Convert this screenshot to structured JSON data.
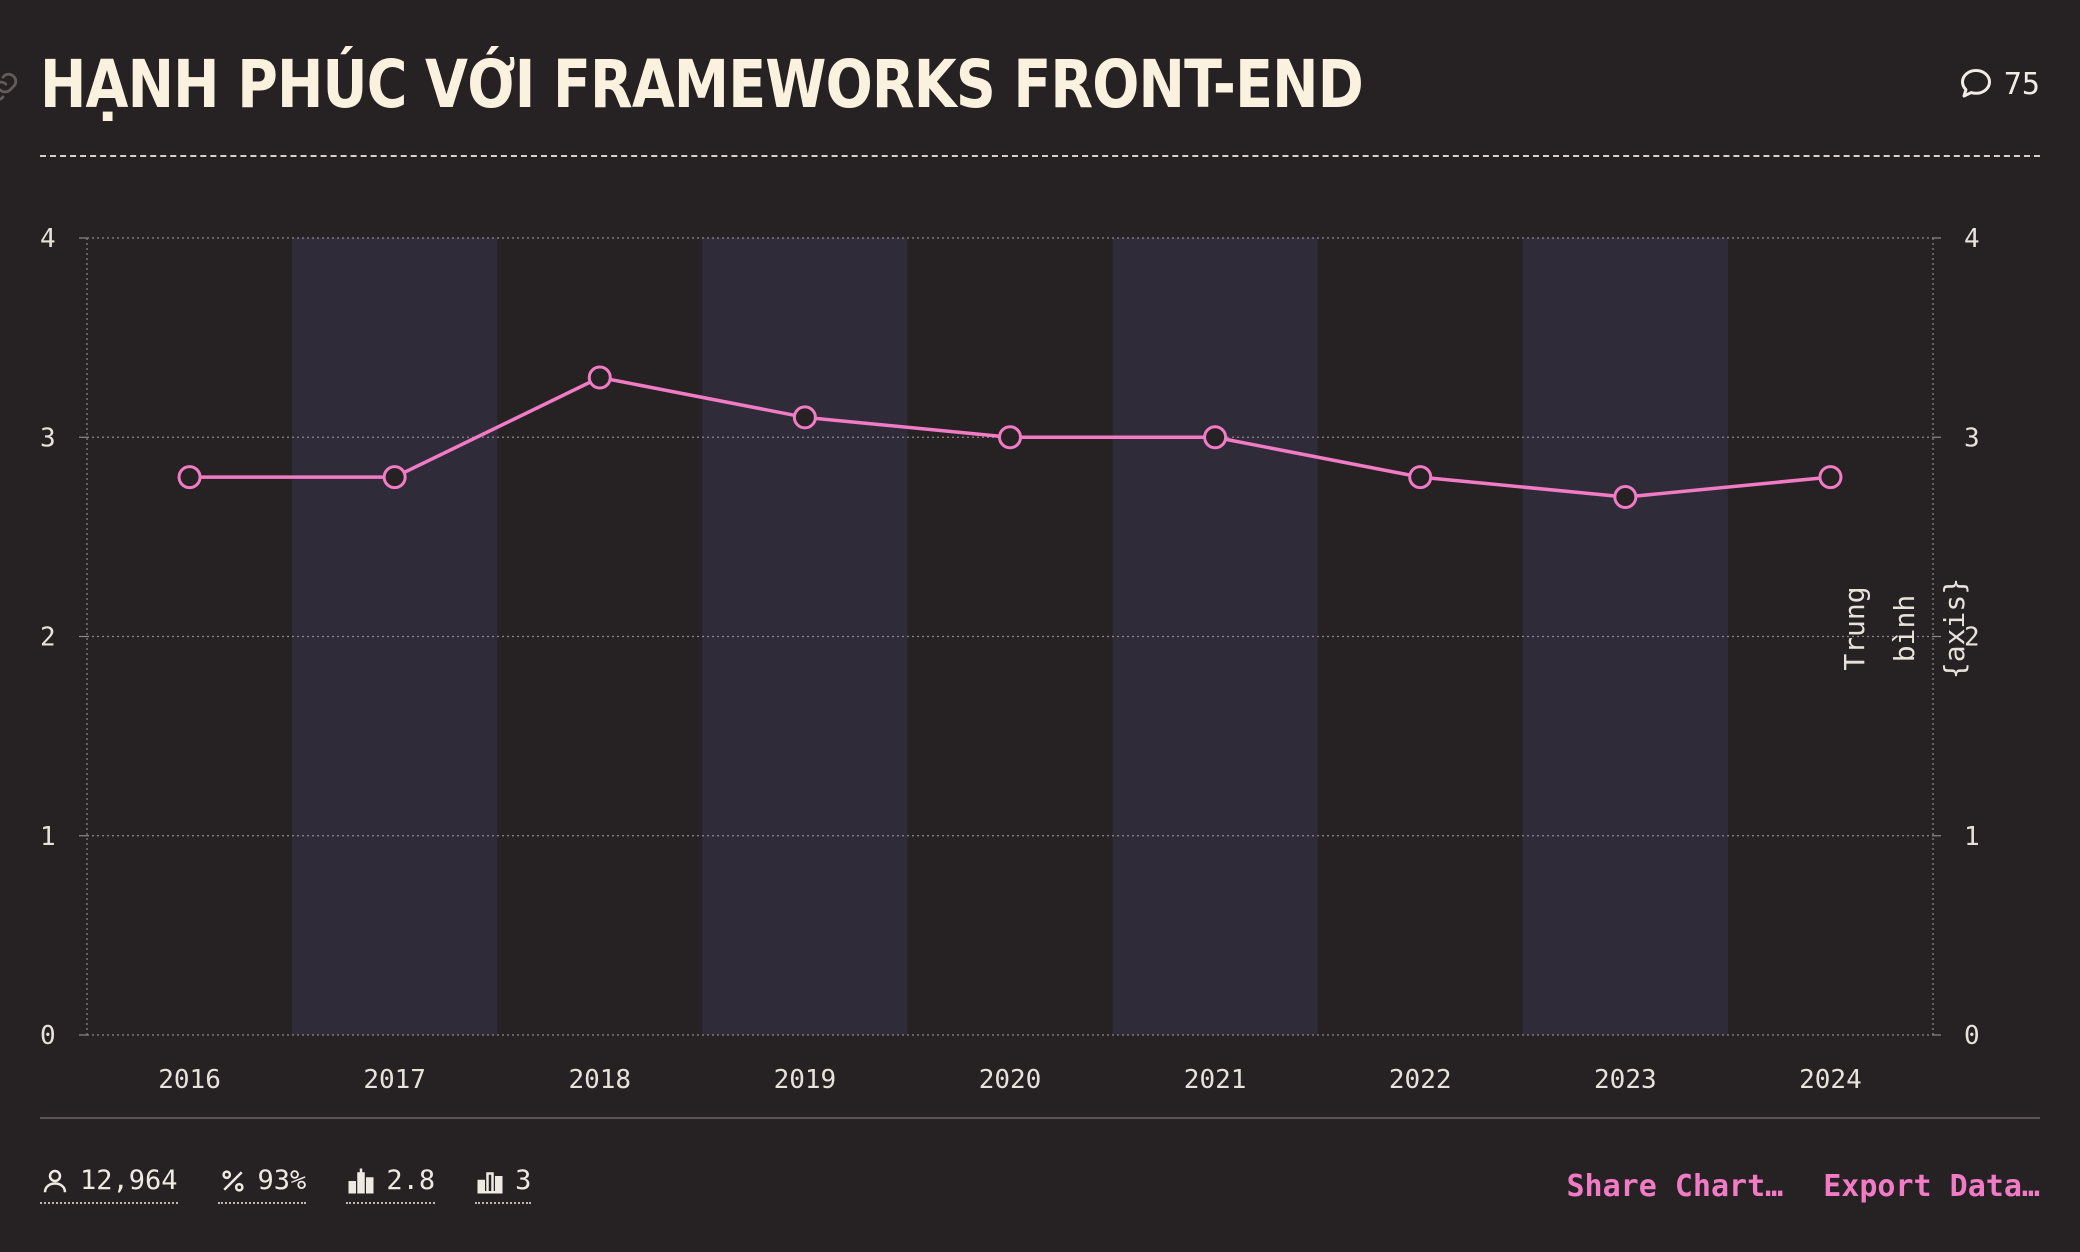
{
  "header": {
    "title": "HẠNH PHÚC VỚI FRAMEWORKS FRONT-END",
    "comment_count": "75"
  },
  "chart_data": {
    "type": "line",
    "title": "HẠNH PHÚC VỚI FRAMEWORKS FRONT-END",
    "categories": [
      "2016",
      "2017",
      "2018",
      "2019",
      "2020",
      "2021",
      "2022",
      "2023",
      "2024"
    ],
    "series": [
      {
        "values": [
          2.8,
          2.8,
          3.3,
          3.1,
          3.0,
          3.0,
          2.8,
          2.7,
          2.8
        ]
      }
    ],
    "ylim": [
      0,
      4
    ],
    "yticks": [
      "0",
      "1",
      "2",
      "3",
      "4"
    ],
    "ylabel_right": [
      "Trung",
      "bình",
      "{axis}"
    ],
    "grid": true,
    "alternating_column_bands": true,
    "line_color": "#f27bc6",
    "band_color": "#302b38"
  },
  "footer": {
    "stats": [
      {
        "icon": "user-icon",
        "value": "12,964"
      },
      {
        "icon": "percent-icon",
        "value": "93%"
      },
      {
        "icon": "average-bars-icon",
        "value": "2.8"
      },
      {
        "icon": "median-bars-icon",
        "value": "3"
      }
    ],
    "share_label": "Share Chart…",
    "export_label": "Export Data…"
  },
  "colors": {
    "background": "#262224",
    "accent": "#f27bc6",
    "title": "#fbf1df"
  }
}
